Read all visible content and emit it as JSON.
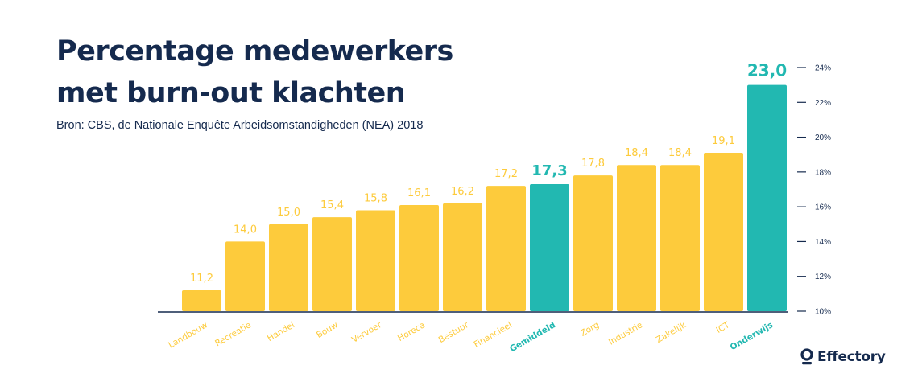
{
  "header": {
    "title_line1": "Percentage medewerkers",
    "title_line2": "met burn-out klachten",
    "subtitle": "Bron: CBS, de Nationale Enquête Arbeidsomstandigheden (NEA) 2018"
  },
  "brand": {
    "name": "Effectory",
    "icon": "effectory-logo-icon"
  },
  "colors": {
    "bar": "#fdcb3c",
    "highlight": "#22b8b1",
    "label": "#fdcb3c",
    "axis": "#152a4e",
    "text": "#152a4e"
  },
  "chart_data": {
    "type": "bar",
    "title": "Percentage medewerkers met burn-out klachten",
    "xlabel": "",
    "ylabel": "",
    "categories": [
      "Landbouw",
      "Recreatie",
      "Handel",
      "Bouw",
      "Vervoer",
      "Horeca",
      "Bestuur",
      "Financieel",
      "Gemiddeld",
      "Zorg",
      "Industrie",
      "Zakelijk",
      "ICT",
      "Onderwijs"
    ],
    "values": [
      11.2,
      14.0,
      15.0,
      15.4,
      15.8,
      16.1,
      16.2,
      17.2,
      17.3,
      17.8,
      18.4,
      18.4,
      19.1,
      23.0
    ],
    "value_labels": [
      "11,2",
      "14,0",
      "15,0",
      "15,4",
      "15,8",
      "16,1",
      "16,2",
      "17,2",
      "17,3",
      "17,8",
      "18,4",
      "18,4",
      "19,1",
      "23,0"
    ],
    "highlighted": [
      "Gemiddeld",
      "Onderwijs"
    ],
    "ylim": [
      10,
      24
    ],
    "yticks": [
      10,
      12,
      14,
      16,
      18,
      20,
      22,
      24
    ],
    "ytick_labels": [
      "10%",
      "12%",
      "14%",
      "16%",
      "18%",
      "20%",
      "22%",
      "24%"
    ],
    "y_axis_side": "right",
    "grid": false,
    "legend": "none"
  }
}
